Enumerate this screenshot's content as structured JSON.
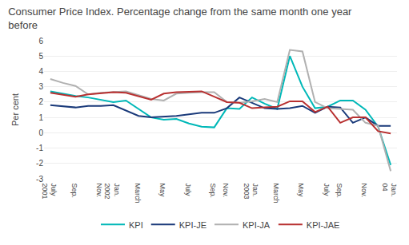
{
  "chart_data": {
    "type": "line",
    "title": "Consumer Price Index. Percentage change from the same month one year\nbefore",
    "ylabel": "Per cent",
    "categories": [
      "July\n2001",
      null,
      "Sep.",
      null,
      "Nov.",
      "Jan.\n2002",
      null,
      "March",
      null,
      "May",
      null,
      "July",
      null,
      "Sep.",
      "Nov.",
      null,
      "Jan.\n2003",
      null,
      "March",
      null,
      "May",
      null,
      "July",
      "Sep.",
      null,
      "Nov.",
      null,
      "Jan.\n04"
    ],
    "series": [
      {
        "name": "KPI",
        "color": "#00b8b8",
        "values": [
          2.7,
          2.55,
          2.4,
          2.3,
          2.15,
          2.0,
          2.1,
          1.55,
          1.0,
          0.85,
          0.9,
          0.6,
          0.4,
          0.35,
          1.6,
          1.55,
          2.3,
          1.9,
          1.55,
          5.0,
          3.0,
          1.6,
          1.7,
          2.1,
          2.1,
          1.5,
          0.4,
          -2.1
        ]
      },
      {
        "name": "KPI-JE",
        "color": "#1a3a7a",
        "values": [
          1.8,
          1.72,
          1.65,
          1.75,
          1.75,
          1.8,
          1.45,
          1.1,
          1.0,
          1.05,
          1.1,
          1.2,
          1.3,
          1.3,
          1.6,
          2.3,
          1.95,
          1.6,
          1.55,
          1.6,
          1.75,
          1.3,
          1.7,
          1.65,
          0.65,
          1.0,
          0.45,
          0.45
        ]
      },
      {
        "name": "KPI-JA",
        "color": "#b0b0b0",
        "values": [
          3.5,
          3.25,
          3.05,
          2.5,
          2.6,
          2.65,
          2.7,
          2.45,
          2.2,
          2.1,
          2.55,
          2.6,
          2.65,
          2.65,
          2.0,
          1.95,
          2.05,
          2.2,
          2.0,
          5.4,
          5.3,
          2.0,
          1.6,
          1.55,
          1.5,
          0.65,
          0.45,
          -2.5
        ]
      },
      {
        "name": "KPI-JAE",
        "color": "#b83030",
        "values": [
          2.6,
          2.47,
          2.35,
          2.5,
          2.57,
          2.65,
          2.6,
          2.37,
          2.15,
          2.55,
          2.65,
          2.67,
          2.7,
          2.35,
          2.0,
          1.95,
          1.6,
          1.65,
          1.7,
          2.05,
          2.05,
          1.35,
          1.7,
          0.65,
          1.0,
          1.0,
          0.1,
          -0.05
        ]
      }
    ],
    "ylim": [
      -3,
      6
    ],
    "yticks": [
      -3,
      -2,
      -1,
      0,
      1,
      2,
      3,
      4,
      5,
      6
    ],
    "grid": true,
    "legend": "bottom"
  }
}
